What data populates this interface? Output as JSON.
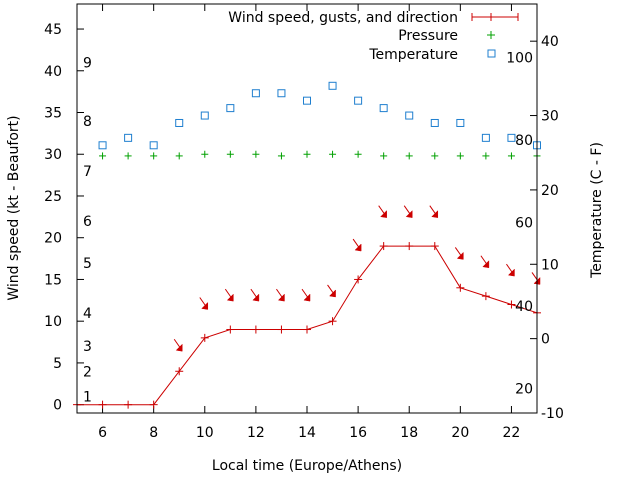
{
  "chart_data": {
    "type": "line",
    "xlabel": "Local time (Europe/Athens)",
    "ylabel_left": "Wind speed (kt - Beaufort)",
    "ylabel_right": "Temperature (C - F)",
    "xlim": [
      5,
      23
    ],
    "ylim_left": [
      -1,
      48
    ],
    "ylim_right": [
      -10,
      45
    ],
    "x_ticks": [
      6,
      8,
      10,
      12,
      14,
      16,
      18,
      20,
      22
    ],
    "y_left_ticks": [
      0,
      5,
      10,
      15,
      20,
      25,
      30,
      35,
      40,
      45
    ],
    "y_right_ticks": [
      -10,
      0,
      10,
      20,
      30,
      40
    ],
    "beaufort_labels": [
      {
        "label": "1",
        "y": 1
      },
      {
        "label": "2",
        "y": 4
      },
      {
        "label": "3",
        "y": 7
      },
      {
        "label": "4",
        "y": 11
      },
      {
        "label": "5",
        "y": 17
      },
      {
        "label": "6",
        "y": 22
      },
      {
        "label": "7",
        "y": 28
      },
      {
        "label": "8",
        "y": 34
      },
      {
        "label": "9",
        "y": 41
      }
    ],
    "fahrenheit_labels": [
      {
        "label": "20",
        "y": -6.7
      },
      {
        "label": "40",
        "y": 4.4
      },
      {
        "label": "60",
        "y": 15.6
      },
      {
        "label": "80",
        "y": 26.7
      },
      {
        "label": "100",
        "y": 37.8
      }
    ],
    "legend": [
      "Wind speed, gusts, and direction",
      "Pressure",
      "Temperature"
    ],
    "legend_position": "top-right",
    "series": [
      {
        "name": "Wind speed, gusts, and direction",
        "color": "#cc0000",
        "x": [
          5,
          6,
          7,
          8,
          9,
          10,
          11,
          12,
          13,
          14,
          15,
          16,
          17,
          18,
          19,
          20,
          21,
          22,
          23
        ],
        "y": [
          0,
          0,
          0,
          0,
          4,
          8,
          9,
          9,
          9,
          9,
          10,
          15,
          19,
          19,
          19,
          14,
          13,
          12,
          11
        ]
      },
      {
        "name": "Pressure",
        "color": "#00a000",
        "x": [
          6,
          7,
          8,
          9,
          10,
          11,
          12,
          13,
          14,
          15,
          16,
          17,
          18,
          19,
          20,
          21,
          22,
          23
        ],
        "y": [
          29.8,
          29.8,
          29.8,
          29.8,
          30,
          30,
          30,
          29.8,
          30,
          30,
          30,
          29.8,
          29.8,
          29.8,
          29.8,
          29.8,
          29.8,
          29.8
        ]
      },
      {
        "name": "Temperature",
        "color": "#1f7fcf",
        "x": [
          6,
          7,
          8,
          9,
          10,
          11,
          12,
          13,
          14,
          15,
          16,
          17,
          18,
          19,
          20,
          21,
          22,
          23
        ],
        "y": [
          26,
          27,
          26,
          29,
          30,
          31,
          33,
          33,
          32,
          34,
          32,
          31,
          30,
          29,
          29,
          27,
          27,
          26
        ]
      }
    ],
    "wind_direction_arrows": [
      {
        "x": 9,
        "y": 7
      },
      {
        "x": 10,
        "y": 12
      },
      {
        "x": 11,
        "y": 13
      },
      {
        "x": 12,
        "y": 13
      },
      {
        "x": 13,
        "y": 13
      },
      {
        "x": 14,
        "y": 13
      },
      {
        "x": 15,
        "y": 13.5
      },
      {
        "x": 16,
        "y": 19
      },
      {
        "x": 17,
        "y": 23
      },
      {
        "x": 18,
        "y": 23
      },
      {
        "x": 19,
        "y": 23
      },
      {
        "x": 20,
        "y": 18
      },
      {
        "x": 21,
        "y": 17
      },
      {
        "x": 22,
        "y": 16
      },
      {
        "x": 23,
        "y": 15
      }
    ]
  }
}
